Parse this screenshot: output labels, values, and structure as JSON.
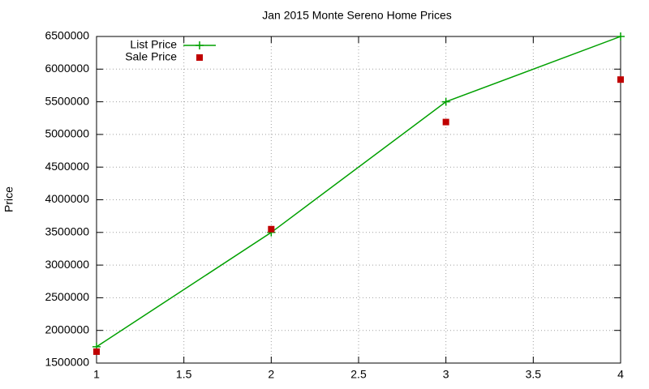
{
  "chart_data": {
    "type": "line",
    "title": "Jan 2015 Monte Sereno Home Prices",
    "y_label": "Price",
    "x": [
      1,
      2,
      3,
      4
    ],
    "series": [
      {
        "name": "List Price",
        "color": "#00a000",
        "line": true,
        "marker": "plus",
        "values": [
          1750000,
          3500000,
          5500000,
          6500000
        ]
      },
      {
        "name": "Sale Price",
        "color": "#c00000",
        "line": false,
        "marker": "square",
        "values": [
          1675000,
          3550000,
          5190000,
          5840000
        ]
      }
    ],
    "xlim": [
      1,
      4
    ],
    "xticks": [
      1,
      1.5,
      2,
      2.5,
      3,
      3.5,
      4
    ],
    "ylim": [
      1500000,
      6500000
    ],
    "yticks": [
      1500000,
      2000000,
      2500000,
      3000000,
      3500000,
      4000000,
      4500000,
      5000000,
      5500000,
      6000000,
      6500000
    ],
    "grid": true,
    "legend": "top-left"
  }
}
